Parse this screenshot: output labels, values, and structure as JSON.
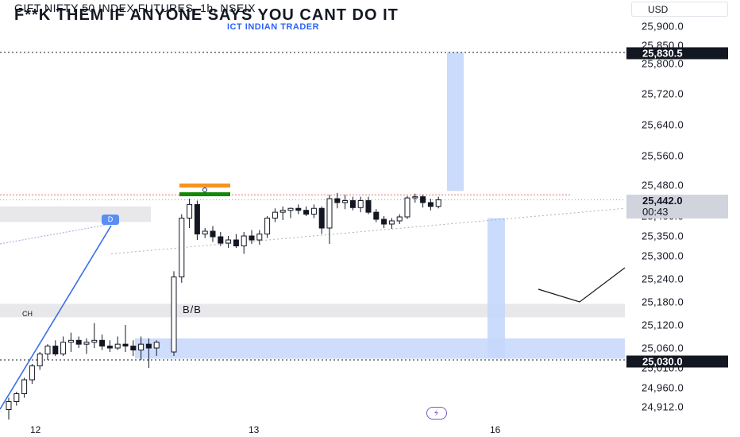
{
  "header": {
    "symbol_line": "GIFT NIFTY 50 INDEX FUTURES, 1h, NSEIX",
    "headline": "F**K THEM IF ANYONE SAYS YOU CANT DO IT",
    "subheadline": "ICT INDIAN TRADER"
  },
  "currency": "USD",
  "annotations": {
    "marker_label": "D",
    "choch_label": "CH",
    "bb_label": "B/B",
    "flag_icon": "india-flag-icon",
    "replay_icon": "replay-icon"
  },
  "price_tags": {
    "upper": "25,830.5",
    "current_price": "25,442.0",
    "countdown": "00:43",
    "lower": "25,030.0"
  },
  "colors": {
    "zone_fill": "#c5d7fb",
    "gray_zone": "#e8e8ea",
    "trendline": "#3b6fe8",
    "tag_dark": "#131722",
    "candle": "#131722"
  },
  "chart_data": {
    "type": "candlestick",
    "title": "GIFT NIFTY 50 INDEX FUTURES, 1h, NSEIX",
    "y_ticks": [
      "25,900.0",
      "25,850.0",
      "25,800.0",
      "25,720.0",
      "25,640.0",
      "25,560.0",
      "25,480.0",
      "25,400.0",
      "25,350.0",
      "25,300.0",
      "25,240.0",
      "25,180.0",
      "25,120.0",
      "25,060.0",
      "25,010.0",
      "24,960.0",
      "24,912.0"
    ],
    "x_ticks": [
      "12",
      "13",
      "16"
    ],
    "ohlc": [
      {
        "o": 24905,
        "h": 24935,
        "l": 24880,
        "c": 24925
      },
      {
        "o": 24925,
        "h": 24950,
        "l": 24915,
        "c": 24945
      },
      {
        "o": 24945,
        "h": 24985,
        "l": 24935,
        "c": 24980
      },
      {
        "o": 24980,
        "h": 25020,
        "l": 24970,
        "c": 25015
      },
      {
        "o": 25015,
        "h": 25050,
        "l": 25005,
        "c": 25045
      },
      {
        "o": 25045,
        "h": 25070,
        "l": 25030,
        "c": 25065
      },
      {
        "o": 25065,
        "h": 25080,
        "l": 25040,
        "c": 25045
      },
      {
        "o": 25045,
        "h": 25090,
        "l": 25040,
        "c": 25075
      },
      {
        "o": 25075,
        "h": 25100,
        "l": 25050,
        "c": 25080
      },
      {
        "o": 25080,
        "h": 25090,
        "l": 25060,
        "c": 25070
      },
      {
        "o": 25070,
        "h": 25085,
        "l": 25045,
        "c": 25075
      },
      {
        "o": 25075,
        "h": 25125,
        "l": 25060,
        "c": 25080
      },
      {
        "o": 25080,
        "h": 25095,
        "l": 25055,
        "c": 25065
      },
      {
        "o": 25065,
        "h": 25080,
        "l": 25050,
        "c": 25060
      },
      {
        "o": 25060,
        "h": 25090,
        "l": 25055,
        "c": 25070
      },
      {
        "o": 25070,
        "h": 25120,
        "l": 25050,
        "c": 25065
      },
      {
        "o": 25065,
        "h": 25080,
        "l": 25040,
        "c": 25055
      },
      {
        "o": 25055,
        "h": 25090,
        "l": 25030,
        "c": 25070
      },
      {
        "o": 25070,
        "h": 25085,
        "l": 25010,
        "c": 25060
      },
      {
        "o": 25060,
        "h": 25080,
        "l": 25040,
        "c": 25075
      },
      {
        "o": 25050,
        "h": 25260,
        "l": 25040,
        "c": 25245
      },
      {
        "o": 25245,
        "h": 25405,
        "l": 25230,
        "c": 25395
      },
      {
        "o": 25395,
        "h": 25445,
        "l": 25370,
        "c": 25430
      },
      {
        "o": 25430,
        "h": 25440,
        "l": 25340,
        "c": 25355
      },
      {
        "o": 25355,
        "h": 25370,
        "l": 25345,
        "c": 25362
      },
      {
        "o": 25362,
        "h": 25375,
        "l": 25335,
        "c": 25348
      },
      {
        "o": 25348,
        "h": 25360,
        "l": 25325,
        "c": 25332
      },
      {
        "o": 25332,
        "h": 25350,
        "l": 25320,
        "c": 25340
      },
      {
        "o": 25340,
        "h": 25355,
        "l": 25320,
        "c": 25325
      },
      {
        "o": 25325,
        "h": 25360,
        "l": 25305,
        "c": 25350
      },
      {
        "o": 25350,
        "h": 25365,
        "l": 25330,
        "c": 25340
      },
      {
        "o": 25340,
        "h": 25365,
        "l": 25328,
        "c": 25355
      },
      {
        "o": 25355,
        "h": 25400,
        "l": 25345,
        "c": 25395
      },
      {
        "o": 25395,
        "h": 25420,
        "l": 25385,
        "c": 25410
      },
      {
        "o": 25410,
        "h": 25425,
        "l": 25390,
        "c": 25415
      },
      {
        "o": 25415,
        "h": 25422,
        "l": 25395,
        "c": 25420
      },
      {
        "o": 25420,
        "h": 25430,
        "l": 25405,
        "c": 25415
      },
      {
        "o": 25415,
        "h": 25425,
        "l": 25400,
        "c": 25405
      },
      {
        "o": 25405,
        "h": 25430,
        "l": 25395,
        "c": 25420
      },
      {
        "o": 25420,
        "h": 25425,
        "l": 25355,
        "c": 25370
      },
      {
        "o": 25370,
        "h": 25455,
        "l": 25330,
        "c": 25445
      },
      {
        "o": 25445,
        "h": 25460,
        "l": 25420,
        "c": 25435
      },
      {
        "o": 25435,
        "h": 25455,
        "l": 25418,
        "c": 25440
      },
      {
        "o": 25440,
        "h": 25450,
        "l": 25415,
        "c": 25422
      },
      {
        "o": 25422,
        "h": 25450,
        "l": 25410,
        "c": 25440
      },
      {
        "o": 25440,
        "h": 25450,
        "l": 25405,
        "c": 25410
      },
      {
        "o": 25410,
        "h": 25418,
        "l": 25385,
        "c": 25392
      },
      {
        "o": 25392,
        "h": 25400,
        "l": 25370,
        "c": 25380
      },
      {
        "o": 25380,
        "h": 25395,
        "l": 25368,
        "c": 25388
      },
      {
        "o": 25388,
        "h": 25405,
        "l": 25380,
        "c": 25398
      },
      {
        "o": 25398,
        "h": 25452,
        "l": 25393,
        "c": 25447
      },
      {
        "o": 25447,
        "h": 25458,
        "l": 25435,
        "c": 25450
      },
      {
        "o": 25450,
        "h": 25455,
        "l": 25422,
        "c": 25435
      },
      {
        "o": 25435,
        "h": 25445,
        "l": 25415,
        "c": 25425
      },
      {
        "o": 25425,
        "h": 25450,
        "l": 25420,
        "c": 25442
      }
    ],
    "levels": {
      "upper_target": 25830.5,
      "lower_level": 25030.0,
      "current": 25442.0
    }
  }
}
